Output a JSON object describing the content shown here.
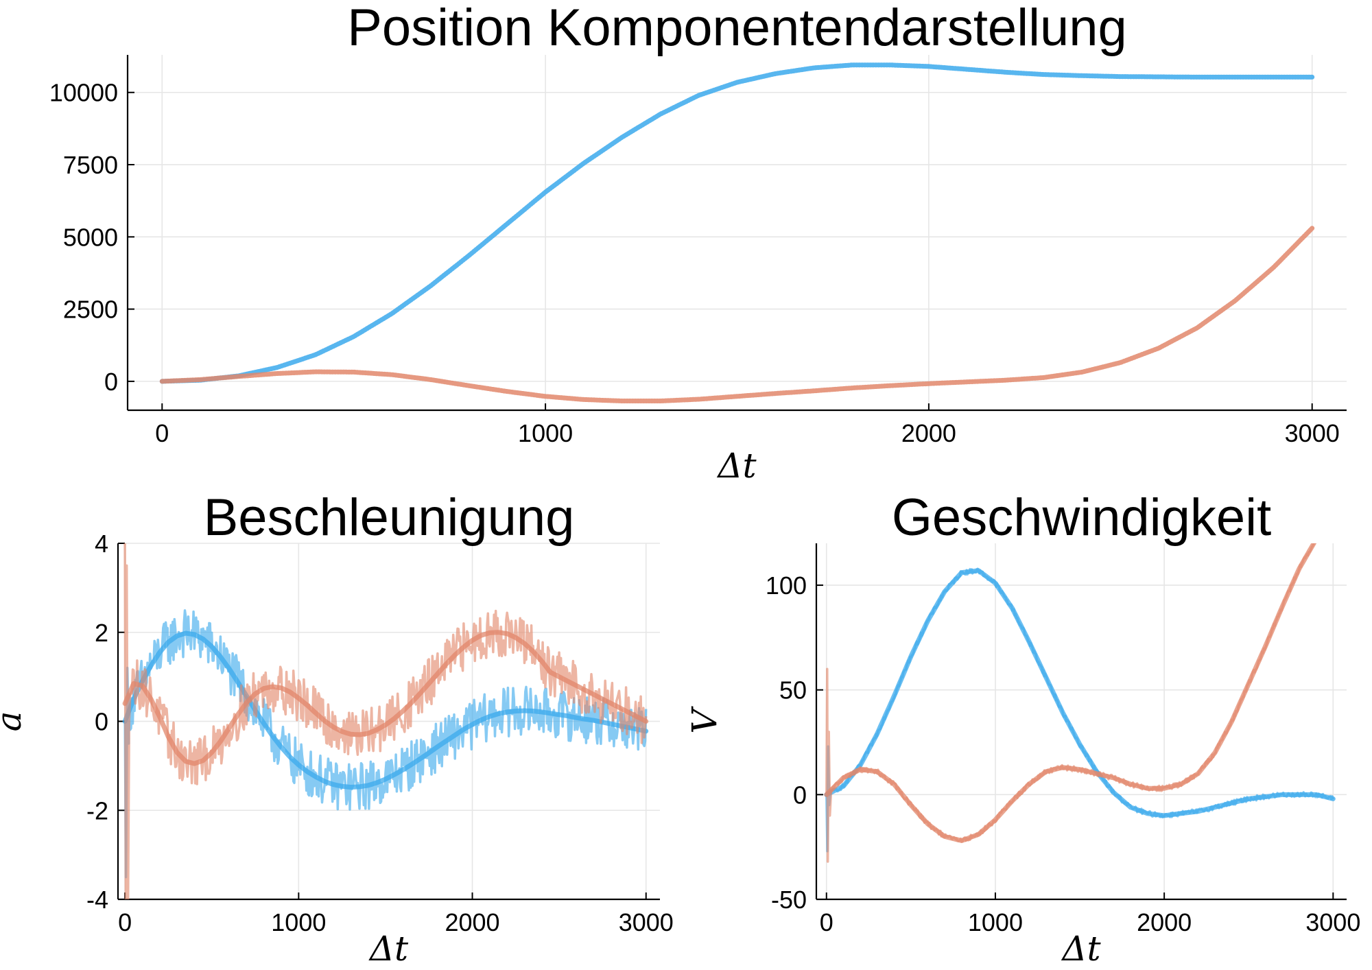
{
  "colors": {
    "series1": "#3ba9ec",
    "series2": "#e2876b"
  },
  "chart_data": [
    {
      "id": "position",
      "type": "line",
      "title": "Position Komponentendarstellung",
      "xlabel": "Δt",
      "ylabel": "",
      "xlim": [
        -90,
        3090
      ],
      "ylim": [
        -1000,
        11300
      ],
      "xticks": [
        0,
        1000,
        2000,
        3000
      ],
      "xticklabels": [
        "0",
        "1000",
        "2000",
        "3000"
      ],
      "yticks": [
        0,
        2500,
        5000,
        7500,
        10000
      ],
      "yticklabels": [
        "0",
        "2500",
        "5000",
        "7500",
        "10000"
      ],
      "grid": true,
      "legend": "none",
      "series": [
        {
          "color": "#3ba9ec",
          "style": "dotted-thick",
          "x": [
            0,
            100,
            200,
            300,
            400,
            500,
            600,
            700,
            800,
            900,
            1000,
            1100,
            1200,
            1300,
            1400,
            1500,
            1600,
            1700,
            1800,
            1900,
            2000,
            2100,
            2200,
            2300,
            2400,
            2500,
            2600,
            2700,
            2800,
            2900,
            3000
          ],
          "y": [
            0,
            40,
            190,
            480,
            920,
            1550,
            2350,
            3300,
            4350,
            5450,
            6550,
            7550,
            8450,
            9250,
            9900,
            10350,
            10650,
            10850,
            10950,
            10950,
            10900,
            10800,
            10700,
            10620,
            10580,
            10550,
            10540,
            10530,
            10530,
            10530,
            10530
          ]
        },
        {
          "color": "#e2876b",
          "style": "dotted-thick",
          "x": [
            0,
            100,
            200,
            300,
            400,
            500,
            600,
            700,
            800,
            900,
            1000,
            1100,
            1200,
            1300,
            1400,
            1500,
            1600,
            1700,
            1800,
            1900,
            2000,
            2100,
            2200,
            2300,
            2400,
            2500,
            2600,
            2700,
            2800,
            2900,
            3000
          ],
          "y": [
            0,
            60,
            170,
            270,
            330,
            320,
            230,
            60,
            -150,
            -350,
            -520,
            -630,
            -680,
            -680,
            -620,
            -520,
            -420,
            -330,
            -230,
            -150,
            -80,
            -20,
            40,
            130,
            320,
            650,
            1150,
            1850,
            2800,
            3950,
            5300
          ]
        }
      ]
    },
    {
      "id": "beschleunigung",
      "type": "line",
      "title": "Beschleunigung",
      "xlabel": "Δt",
      "ylabel": "a",
      "xlim": [
        -40,
        3080
      ],
      "ylim": [
        -4,
        4
      ],
      "xticks": [
        0,
        1000,
        2000,
        3000
      ],
      "xticklabels": [
        "0",
        "1000",
        "2000",
        "3000"
      ],
      "yticks": [
        -4,
        -2,
        0,
        2,
        4
      ],
      "yticklabels": [
        "-4",
        "-2",
        "0",
        "2",
        "4"
      ],
      "grid": true,
      "legend": "none",
      "noise_amplitude": 0.55,
      "series": [
        {
          "color": "#3ba9ec",
          "x": [
            0,
            50,
            100,
            150,
            200,
            250,
            300,
            350,
            400,
            450,
            500,
            550,
            600,
            650,
            700,
            750,
            800,
            850,
            900,
            950,
            1000,
            1050,
            1100,
            1150,
            1200,
            1250,
            1300,
            1350,
            1400,
            1450,
            1500,
            1550,
            1600,
            1650,
            1700,
            1750,
            1800,
            1850,
            1900,
            1950,
            2000,
            2050,
            2100,
            2150,
            2200,
            2250,
            2300,
            2350,
            2400,
            2450,
            2500,
            2550,
            2600,
            2650,
            2700,
            2750,
            2800,
            2850,
            2900,
            2950,
            3000
          ],
          "y": [
            0.0,
            0.5,
            0.9,
            1.25,
            1.55,
            1.78,
            1.92,
            1.98,
            1.95,
            1.85,
            1.68,
            1.45,
            1.18,
            0.88,
            0.57,
            0.25,
            -0.05,
            -0.33,
            -0.58,
            -0.8,
            -0.98,
            -1.13,
            -1.25,
            -1.35,
            -1.42,
            -1.46,
            -1.48,
            -1.47,
            -1.44,
            -1.38,
            -1.3,
            -1.2,
            -1.09,
            -0.97,
            -0.84,
            -0.71,
            -0.57,
            -0.44,
            -0.31,
            -0.18,
            -0.07,
            0.03,
            0.11,
            0.17,
            0.21,
            0.23,
            0.24,
            0.23,
            0.21,
            0.18,
            0.15,
            0.12,
            0.08,
            0.05,
            0.02,
            -0.02,
            -0.06,
            -0.1,
            -0.14,
            -0.18,
            -0.22
          ]
        },
        {
          "color": "#e2876b",
          "x": [
            0,
            50,
            100,
            150,
            200,
            250,
            300,
            350,
            400,
            450,
            500,
            550,
            600,
            650,
            700,
            750,
            800,
            850,
            900,
            950,
            1000,
            1050,
            1100,
            1150,
            1200,
            1250,
            1300,
            1350,
            1400,
            1450,
            1500,
            1550,
            1600,
            1650,
            1700,
            1750,
            1800,
            1850,
            1900,
            1950,
            2000,
            2050,
            2100,
            2150,
            2200,
            2250,
            2300,
            2350,
            2400,
            2450,
            2500,
            2550,
            2600,
            2650,
            2700,
            2750,
            2800,
            2850,
            2900,
            2950,
            3000
          ],
          "y": [
            0.4,
            0.85,
            0.8,
            0.5,
            0.1,
            -0.35,
            -0.7,
            -0.9,
            -0.95,
            -0.88,
            -0.7,
            -0.45,
            -0.15,
            0.15,
            0.42,
            0.62,
            0.74,
            0.78,
            0.75,
            0.66,
            0.52,
            0.36,
            0.18,
            0.01,
            -0.13,
            -0.23,
            -0.29,
            -0.3,
            -0.27,
            -0.19,
            -0.08,
            0.06,
            0.23,
            0.42,
            0.63,
            0.85,
            1.07,
            1.29,
            1.49,
            1.67,
            1.82,
            1.93,
            1.99,
            2.0,
            1.97,
            1.88,
            1.75,
            1.57,
            1.35,
            1.1,
            1.0,
            0.9,
            0.8,
            0.7,
            0.6,
            0.5,
            0.4,
            0.3,
            0.2,
            0.1,
            0.0
          ]
        }
      ]
    },
    {
      "id": "geschwindigkeit",
      "type": "line",
      "title": "Geschwindigkeit",
      "xlabel": "Δt",
      "ylabel": "V",
      "xlim": [
        -60,
        3080
      ],
      "ylim": [
        -50,
        120
      ],
      "xticks": [
        0,
        1000,
        2000,
        3000
      ],
      "xticklabels": [
        "0",
        "1000",
        "2000",
        "3000"
      ],
      "yticks": [
        -50,
        0,
        50,
        100
      ],
      "yticklabels": [
        "-50",
        "0",
        "50",
        "100"
      ],
      "grid": true,
      "legend": "none",
      "noise_amplitude": 1.2,
      "series": [
        {
          "color": "#3ba9ec",
          "x": [
            0,
            100,
            200,
            300,
            400,
            500,
            600,
            700,
            800,
            900,
            1000,
            1100,
            1200,
            1300,
            1400,
            1500,
            1600,
            1700,
            1800,
            1900,
            2000,
            2100,
            2200,
            2300,
            2400,
            2500,
            2600,
            2700,
            2800,
            2900,
            3000
          ],
          "y": [
            0,
            4,
            14,
            29,
            47,
            66,
            83,
            97,
            106,
            107,
            101,
            89,
            73,
            56,
            39,
            24,
            11,
            1,
            -6,
            -9,
            -10,
            -9,
            -8,
            -6,
            -4,
            -2,
            -1,
            0,
            0,
            0,
            -2
          ]
        },
        {
          "color": "#e2876b",
          "x": [
            0,
            100,
            200,
            300,
            400,
            500,
            600,
            700,
            800,
            900,
            1000,
            1100,
            1200,
            1300,
            1400,
            1500,
            1600,
            1700,
            1800,
            1900,
            2000,
            2100,
            2200,
            2300,
            2400,
            2500,
            2600,
            2700,
            2800,
            2900,
            3000
          ],
          "y": [
            0,
            8,
            12,
            11,
            5,
            -5,
            -14,
            -20,
            -22,
            -19,
            -12,
            -3,
            5,
            11,
            13,
            12,
            10,
            8,
            5,
            3,
            3,
            5,
            10,
            20,
            35,
            53,
            71,
            90,
            108,
            122,
            135
          ]
        }
      ]
    }
  ]
}
